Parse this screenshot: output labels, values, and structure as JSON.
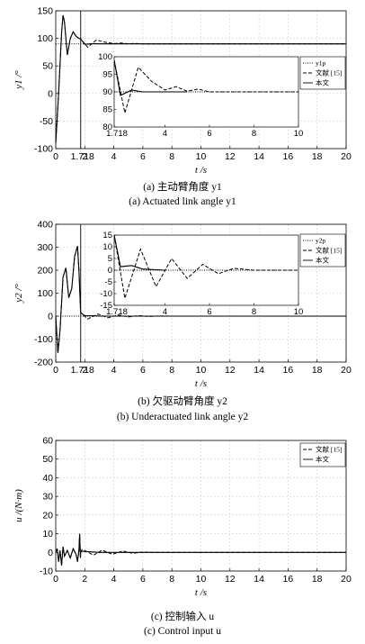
{
  "chart_data": [
    {
      "type": "line",
      "xlabel": "t /s",
      "ylabel": "y1 /°",
      "xlim": [
        0,
        20
      ],
      "ylim": [
        -100,
        150
      ],
      "xticks": [
        "0",
        "2",
        "4",
        "6",
        "8",
        "10",
        "12",
        "14",
        "16",
        "18",
        "20"
      ],
      "yticks": [
        "-100",
        "-50",
        "0",
        "50",
        "100",
        "150"
      ],
      "marker_label": "1.718",
      "marker_x": 1.718,
      "grid": true,
      "legend": [
        "y1p",
        "文献 [15]",
        "本文"
      ],
      "reference_value": 90,
      "series": [
        {
          "name": "文献 [15]",
          "x": [
            0,
            0.2,
            0.4,
            0.5,
            0.6,
            0.8,
            1.0,
            1.2,
            1.4,
            1.6,
            1.718,
            2.2,
            2.8,
            3.4,
            4.0,
            4.5,
            5.0,
            5.5,
            6.0,
            7,
            8,
            10,
            20
          ],
          "y": [
            -90,
            0,
            110,
            142,
            130,
            70,
            100,
            112,
            104,
            100,
            99,
            84,
            97,
            93,
            90.5,
            91.5,
            90.2,
            90.8,
            90,
            90,
            90,
            90,
            90
          ]
        },
        {
          "name": "本文",
          "x": [
            0,
            0.2,
            0.4,
            0.5,
            0.6,
            0.8,
            1.0,
            1.2,
            1.4,
            1.6,
            1.718,
            2.0,
            2.5,
            3.0,
            4.0,
            5.0,
            20
          ],
          "y": [
            -90,
            0,
            110,
            142,
            130,
            70,
            100,
            112,
            104,
            100,
            99,
            89,
            90.5,
            90,
            90,
            90,
            90
          ]
        }
      ],
      "inset": {
        "xlim": [
          1.718,
          10
        ],
        "ylim": [
          80,
          100
        ],
        "xticks": [
          "1.718",
          "4",
          "6",
          "8",
          "10"
        ],
        "yticks": [
          "80",
          "85",
          "90",
          "95",
          "100"
        ]
      },
      "caption_cn": "(a) 主动臂角度 y1",
      "caption_en": "(a) Actuated link angle y1"
    },
    {
      "type": "line",
      "xlabel": "t /s",
      "ylabel": "y2 /°",
      "xlim": [
        0,
        20
      ],
      "ylim": [
        -200,
        400
      ],
      "xticks": [
        "0",
        "2",
        "4",
        "6",
        "8",
        "10",
        "12",
        "14",
        "16",
        "18",
        "20"
      ],
      "yticks": [
        "-200",
        "-100",
        "0",
        "100",
        "200",
        "300",
        "400"
      ],
      "marker_label": "1.718",
      "marker_x": 1.718,
      "grid": true,
      "legend": [
        "y2p",
        "文献 [15]",
        "本文"
      ],
      "reference_value": 0,
      "series": [
        {
          "name": "文献 [15]",
          "x": [
            0,
            0.15,
            0.3,
            0.5,
            0.7,
            0.9,
            1.1,
            1.3,
            1.5,
            1.6,
            1.718,
            2.2,
            2.9,
            3.6,
            4.3,
            5.0,
            5.7,
            6.4,
            7.1,
            8,
            10,
            20
          ],
          "y": [
            0,
            -160,
            -60,
            170,
            210,
            80,
            120,
            260,
            305,
            200,
            15,
            -12,
            9,
            -7,
            5,
            -3.5,
            2.5,
            -1.5,
            0.8,
            0,
            0,
            0
          ]
        },
        {
          "name": "本文",
          "x": [
            0,
            0.15,
            0.3,
            0.5,
            0.7,
            0.9,
            1.1,
            1.3,
            1.5,
            1.6,
            1.718,
            2.0,
            2.5,
            3.0,
            4.0,
            20
          ],
          "y": [
            0,
            -160,
            -60,
            170,
            210,
            80,
            120,
            260,
            305,
            200,
            15,
            1.5,
            2,
            0.5,
            0,
            0
          ]
        }
      ],
      "inset": {
        "xlim": [
          1.718,
          10
        ],
        "ylim": [
          -15,
          15
        ],
        "xticks": [
          "1.718",
          "4",
          "6",
          "8",
          "10"
        ],
        "yticks": [
          "-15",
          "-10",
          "-5",
          "0",
          "5",
          "10",
          "15"
        ]
      },
      "caption_cn": "(b) 欠驱动臂角度 y2",
      "caption_en": "(b) Underactuated link angle y2"
    },
    {
      "type": "line",
      "xlabel": "t /s",
      "ylabel": "u /(N·m)",
      "xlim": [
        0,
        20
      ],
      "ylim": [
        -10,
        60
      ],
      "xticks": [
        "0",
        "2",
        "4",
        "6",
        "8",
        "10",
        "12",
        "14",
        "16",
        "18",
        "20"
      ],
      "yticks": [
        "-10",
        "0",
        "10",
        "20",
        "30",
        "40",
        "50",
        "60"
      ],
      "grid": true,
      "legend": [
        "文献 [15]",
        "本文"
      ],
      "series": [
        {
          "name": "文献 [15]",
          "x": [
            0,
            0.1,
            0.2,
            0.3,
            0.4,
            0.5,
            0.6,
            0.8,
            1.0,
            1.2,
            1.4,
            1.5,
            1.6,
            1.65,
            1.7,
            1.718,
            1.8,
            2.0,
            2.6,
            3.2,
            3.9,
            4.6,
            5.3,
            6.0,
            7,
            20
          ],
          "y": [
            0,
            2,
            -5,
            1,
            -7,
            3,
            -2,
            1,
            -3,
            2,
            -1,
            -5,
            1,
            10,
            -3,
            0,
            1.5,
            1,
            -1.5,
            1.2,
            -1,
            0.7,
            -0.5,
            0.2,
            0,
            0
          ]
        },
        {
          "name": "本文",
          "x": [
            0,
            0.1,
            0.2,
            0.3,
            0.4,
            0.5,
            0.6,
            0.8,
            1.0,
            1.2,
            1.4,
            1.5,
            1.6,
            1.65,
            1.7,
            1.718,
            1.8,
            2.0,
            2.4,
            3.0,
            20
          ],
          "y": [
            0,
            2,
            -5,
            1,
            -7,
            3,
            -2,
            1,
            -3,
            2,
            -1,
            -5,
            1,
            10,
            -3,
            0,
            0.6,
            0.5,
            0.3,
            0,
            0
          ]
        }
      ],
      "caption_cn": "(c) 控制输入 u",
      "caption_en": "(c) Control input u"
    }
  ]
}
